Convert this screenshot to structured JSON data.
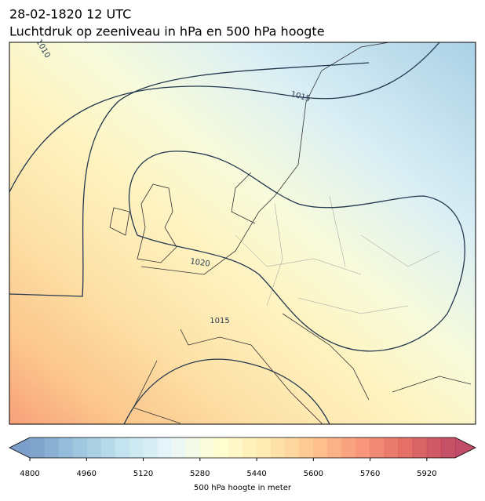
{
  "header": {
    "title": "28-02-1820 12 UTC",
    "subtitle": "Luchtdruk op zeeniveau in hPa en 500 hPa hoogte"
  },
  "contour_labels": [
    "1010",
    "1015",
    "1020",
    "1015"
  ],
  "colorbar": {
    "label": "500 hPa hoogte in meter",
    "range": [
      4800,
      6000
    ],
    "ticks": [
      4800,
      4960,
      5120,
      5280,
      5440,
      5600,
      5760,
      5920
    ]
  }
}
